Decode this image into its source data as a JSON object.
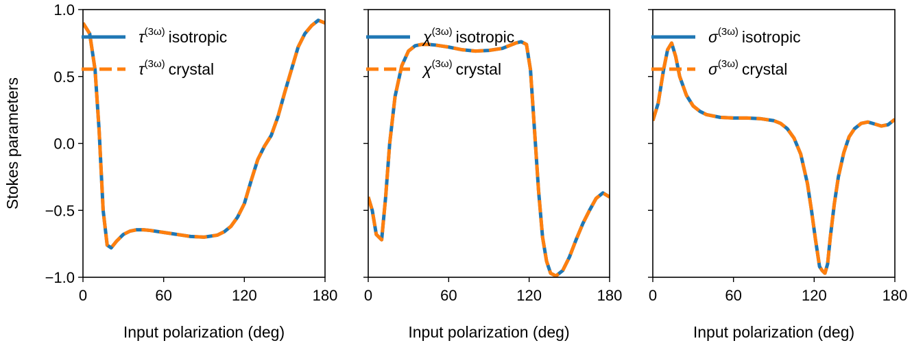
{
  "figure": {
    "ylabel": "Stokes parameters"
  },
  "colors": {
    "isotropic": "#1f77b4",
    "crystal": "#ff7f0e",
    "axes": "#000000",
    "background": "#ffffff"
  },
  "chart_data": [
    {
      "type": "line",
      "title": "",
      "xlabel": "Input polarization (deg)",
      "ylabel": "Stokes parameters",
      "xlim": [
        0,
        180
      ],
      "ylim": [
        -1.0,
        1.0
      ],
      "xticks": [
        0,
        60,
        120,
        180
      ],
      "yticks": [
        -1.0,
        -0.5,
        0.0,
        0.5,
        1.0
      ],
      "ytick_labels": [
        "−1.0",
        "−0.5",
        "0.0",
        "0.5",
        "1.0"
      ],
      "legend_position": "upper-right",
      "legend": {
        "isotropic": {
          "symbol": "τ",
          "sup": "(3ω)",
          "text": "isotropic"
        },
        "crystal": {
          "symbol": "τ",
          "sup": "(3ω)",
          "text": "crystal"
        }
      },
      "x": [
        0,
        5,
        9,
        12,
        15,
        18,
        21,
        25,
        30,
        35,
        40,
        45,
        50,
        60,
        70,
        80,
        90,
        100,
        105,
        110,
        115,
        120,
        125,
        130,
        135,
        140,
        145,
        150,
        155,
        160,
        165,
        170,
        175,
        180
      ],
      "series": [
        {
          "name": "isotropic",
          "values": [
            0.9,
            0.82,
            0.55,
            0.1,
            -0.5,
            -0.76,
            -0.78,
            -0.73,
            -0.68,
            -0.655,
            -0.645,
            -0.645,
            -0.65,
            -0.665,
            -0.68,
            -0.695,
            -0.7,
            -0.685,
            -0.66,
            -0.62,
            -0.55,
            -0.45,
            -0.28,
            -0.12,
            -0.02,
            0.06,
            0.2,
            0.38,
            0.55,
            0.72,
            0.82,
            0.88,
            0.92,
            0.9
          ]
        },
        {
          "name": "crystal",
          "values": [
            0.9,
            0.82,
            0.55,
            0.1,
            -0.5,
            -0.76,
            -0.78,
            -0.73,
            -0.68,
            -0.655,
            -0.645,
            -0.645,
            -0.65,
            -0.665,
            -0.68,
            -0.695,
            -0.7,
            -0.685,
            -0.66,
            -0.62,
            -0.55,
            -0.45,
            -0.28,
            -0.12,
            -0.02,
            0.06,
            0.2,
            0.38,
            0.55,
            0.72,
            0.82,
            0.88,
            0.92,
            0.9
          ]
        }
      ]
    },
    {
      "type": "line",
      "title": "",
      "xlabel": "Input polarization (deg)",
      "ylabel": "",
      "xlim": [
        0,
        180
      ],
      "ylim": [
        -1.0,
        1.0
      ],
      "xticks": [
        0,
        60,
        120,
        180
      ],
      "yticks": [
        -1.0,
        -0.5,
        0.0,
        0.5,
        1.0
      ],
      "ytick_labels": [],
      "legend_position": "upper-right",
      "legend": {
        "isotropic": {
          "symbol": "χ",
          "sup": "(3ω)",
          "text": "isotropic"
        },
        "crystal": {
          "symbol": "χ",
          "sup": "(3ω)",
          "text": "crystal"
        }
      },
      "x": [
        0,
        3,
        6,
        10,
        13,
        16,
        20,
        25,
        30,
        35,
        40,
        45,
        50,
        60,
        70,
        80,
        90,
        100,
        105,
        110,
        114,
        118,
        121,
        124,
        127,
        130,
        133,
        136,
        140,
        145,
        150,
        155,
        160,
        165,
        170,
        175,
        180
      ],
      "series": [
        {
          "name": "isotropic",
          "values": [
            -0.4,
            -0.5,
            -0.68,
            -0.72,
            -0.4,
            0.0,
            0.35,
            0.58,
            0.69,
            0.73,
            0.74,
            0.74,
            0.735,
            0.72,
            0.7,
            0.69,
            0.695,
            0.71,
            0.73,
            0.75,
            0.76,
            0.74,
            0.55,
            0.1,
            -0.35,
            -0.7,
            -0.88,
            -0.97,
            -0.99,
            -0.95,
            -0.85,
            -0.72,
            -0.6,
            -0.5,
            -0.41,
            -0.37,
            -0.4
          ]
        },
        {
          "name": "crystal",
          "values": [
            -0.4,
            -0.5,
            -0.68,
            -0.72,
            -0.4,
            0.0,
            0.35,
            0.58,
            0.69,
            0.73,
            0.74,
            0.74,
            0.735,
            0.72,
            0.7,
            0.69,
            0.695,
            0.71,
            0.73,
            0.75,
            0.76,
            0.74,
            0.55,
            0.1,
            -0.35,
            -0.7,
            -0.88,
            -0.97,
            -0.99,
            -0.95,
            -0.85,
            -0.72,
            -0.6,
            -0.5,
            -0.41,
            -0.37,
            -0.4
          ]
        }
      ]
    },
    {
      "type": "line",
      "title": "",
      "xlabel": "Input polarization (deg)",
      "ylabel": "",
      "xlim": [
        0,
        180
      ],
      "ylim": [
        -1.0,
        1.0
      ],
      "xticks": [
        0,
        60,
        120,
        180
      ],
      "yticks": [
        -1.0,
        -0.5,
        0.0,
        0.5,
        1.0
      ],
      "ytick_labels": [],
      "legend_position": "upper-right",
      "legend": {
        "isotropic": {
          "symbol": "σ",
          "sup": "(3ω)",
          "text": "isotropic"
        },
        "crystal": {
          "symbol": "σ",
          "sup": "(3ω)",
          "text": "crystal"
        }
      },
      "x": [
        0,
        4,
        8,
        11,
        14,
        17,
        20,
        25,
        30,
        35,
        40,
        50,
        60,
        70,
        80,
        90,
        95,
        100,
        105,
        110,
        115,
        118,
        121,
        124,
        126,
        128,
        130,
        132,
        135,
        138,
        142,
        146,
        150,
        155,
        160,
        165,
        170,
        175,
        180
      ],
      "series": [
        {
          "name": "isotropic",
          "values": [
            0.17,
            0.3,
            0.55,
            0.7,
            0.75,
            0.65,
            0.5,
            0.36,
            0.28,
            0.24,
            0.215,
            0.195,
            0.19,
            0.19,
            0.185,
            0.17,
            0.15,
            0.11,
            0.04,
            -0.08,
            -0.3,
            -0.5,
            -0.72,
            -0.92,
            -0.95,
            -0.97,
            -0.9,
            -0.7,
            -0.45,
            -0.25,
            -0.07,
            0.05,
            0.11,
            0.15,
            0.16,
            0.145,
            0.13,
            0.14,
            0.18
          ]
        },
        {
          "name": "crystal",
          "values": [
            0.17,
            0.3,
            0.55,
            0.7,
            0.75,
            0.65,
            0.5,
            0.36,
            0.28,
            0.24,
            0.215,
            0.195,
            0.19,
            0.19,
            0.185,
            0.17,
            0.15,
            0.11,
            0.04,
            -0.08,
            -0.3,
            -0.5,
            -0.72,
            -0.92,
            -0.95,
            -0.97,
            -0.9,
            -0.7,
            -0.45,
            -0.25,
            -0.07,
            0.05,
            0.11,
            0.15,
            0.16,
            0.145,
            0.13,
            0.14,
            0.18
          ]
        }
      ]
    }
  ]
}
